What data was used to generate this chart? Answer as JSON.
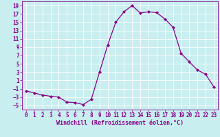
{
  "x": [
    0,
    1,
    2,
    3,
    4,
    5,
    6,
    7,
    8,
    9,
    10,
    11,
    12,
    13,
    14,
    15,
    16,
    17,
    18,
    19,
    20,
    21,
    22,
    23
  ],
  "y": [
    -1.5,
    -2.0,
    -2.5,
    -2.8,
    -3.0,
    -4.2,
    -4.3,
    -4.8,
    -3.5,
    3.0,
    9.5,
    15.0,
    17.5,
    19.0,
    17.2,
    17.5,
    17.3,
    15.8,
    13.8,
    7.5,
    5.5,
    3.5,
    2.5,
    -0.5
  ],
  "line_color": "#880088",
  "marker": "D",
  "marker_size": 2,
  "bg_color": "#c8eef0",
  "grid_color": "#ffffff",
  "xlabel": "Windchill (Refroidissement éolien,°C)",
  "ylabel": "",
  "xlim": [
    -0.5,
    23.5
  ],
  "ylim": [
    -6,
    20
  ],
  "yticks": [
    -5,
    -3,
    -1,
    1,
    3,
    5,
    7,
    9,
    11,
    13,
    15,
    17,
    19
  ],
  "xticks": [
    0,
    1,
    2,
    3,
    4,
    5,
    6,
    7,
    8,
    9,
    10,
    11,
    12,
    13,
    14,
    15,
    16,
    17,
    18,
    19,
    20,
    21,
    22,
    23
  ],
  "label_color": "#880088",
  "tick_color": "#880088",
  "label_fontsize": 6,
  "tick_fontsize": 5.5,
  "spine_color": "#880088"
}
